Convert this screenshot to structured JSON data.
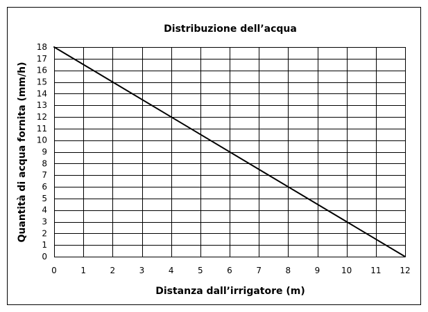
{
  "chart_data": {
    "type": "line",
    "title": "Distribuzione dell’acqua",
    "xlabel": "Distanza dall’irrigatore (m)",
    "ylabel": "Quantità di acqua fornita (mm/h)",
    "xlim": [
      0,
      12
    ],
    "ylim": [
      0,
      18
    ],
    "xticks": [
      0,
      1,
      2,
      3,
      4,
      5,
      6,
      7,
      8,
      9,
      10,
      11,
      12
    ],
    "yticks": [
      0,
      1,
      2,
      3,
      4,
      5,
      6,
      7,
      8,
      9,
      10,
      11,
      12,
      13,
      14,
      15,
      16,
      17,
      18
    ],
    "grid": true,
    "legend": "none",
    "series": [
      {
        "x": [
          0,
          12
        ],
        "y": [
          18,
          0
        ],
        "color": "#000000"
      }
    ]
  }
}
